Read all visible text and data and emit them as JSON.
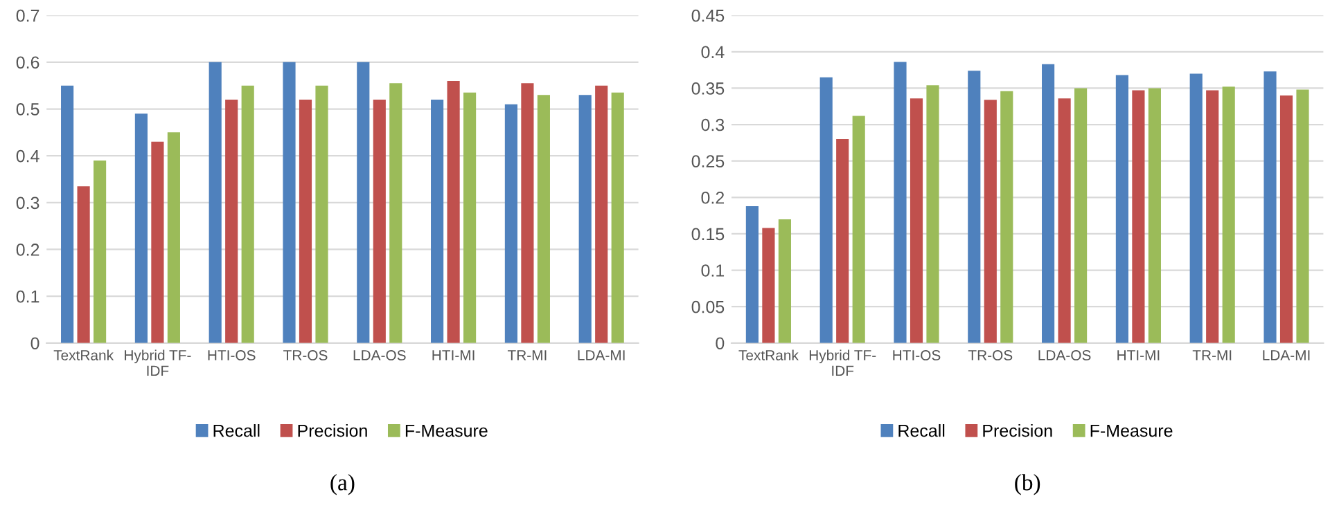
{
  "chart_data": [
    {
      "type": "bar",
      "title": "(a)",
      "categories": [
        "TextRank",
        "Hybrid TF-IDF",
        "HTI-OS",
        "TR-OS",
        "LDA-OS",
        "HTI-MI",
        "TR-MI",
        "LDA-MI"
      ],
      "series": [
        {
          "name": "Recall",
          "color": "#4f81bd",
          "values": [
            0.55,
            0.49,
            0.6,
            0.6,
            0.6,
            0.52,
            0.51,
            0.53
          ]
        },
        {
          "name": "Precision",
          "color": "#c0504d",
          "values": [
            0.335,
            0.43,
            0.52,
            0.52,
            0.52,
            0.56,
            0.555,
            0.55
          ]
        },
        {
          "name": "F-Measure",
          "color": "#9bbb59",
          "values": [
            0.39,
            0.45,
            0.55,
            0.55,
            0.555,
            0.535,
            0.53,
            0.535
          ]
        }
      ],
      "ylim": [
        0,
        0.7
      ],
      "yticks": [
        0,
        0.1,
        0.2,
        0.3,
        0.4,
        0.5,
        0.6,
        0.7
      ],
      "grid": "y",
      "legend": "bottom"
    },
    {
      "type": "bar",
      "title": "(b)",
      "categories": [
        "TextRank",
        "Hybrid TF-IDF",
        "HTI-OS",
        "TR-OS",
        "LDA-OS",
        "HTI-MI",
        "TR-MI",
        "LDA-MI"
      ],
      "series": [
        {
          "name": "Recall",
          "color": "#4f81bd",
          "values": [
            0.188,
            0.365,
            0.386,
            0.374,
            0.383,
            0.368,
            0.37,
            0.373
          ]
        },
        {
          "name": "Precision",
          "color": "#c0504d",
          "values": [
            0.158,
            0.28,
            0.336,
            0.334,
            0.336,
            0.347,
            0.347,
            0.34
          ]
        },
        {
          "name": "F-Measure",
          "color": "#9bbb59",
          "values": [
            0.17,
            0.312,
            0.354,
            0.346,
            0.35,
            0.35,
            0.352,
            0.348
          ]
        }
      ],
      "ylim": [
        0,
        0.45
      ],
      "yticks": [
        0,
        0.05,
        0.1,
        0.15,
        0.2,
        0.25,
        0.3,
        0.35,
        0.4,
        0.45
      ],
      "grid": "y",
      "legend": "bottom"
    }
  ]
}
